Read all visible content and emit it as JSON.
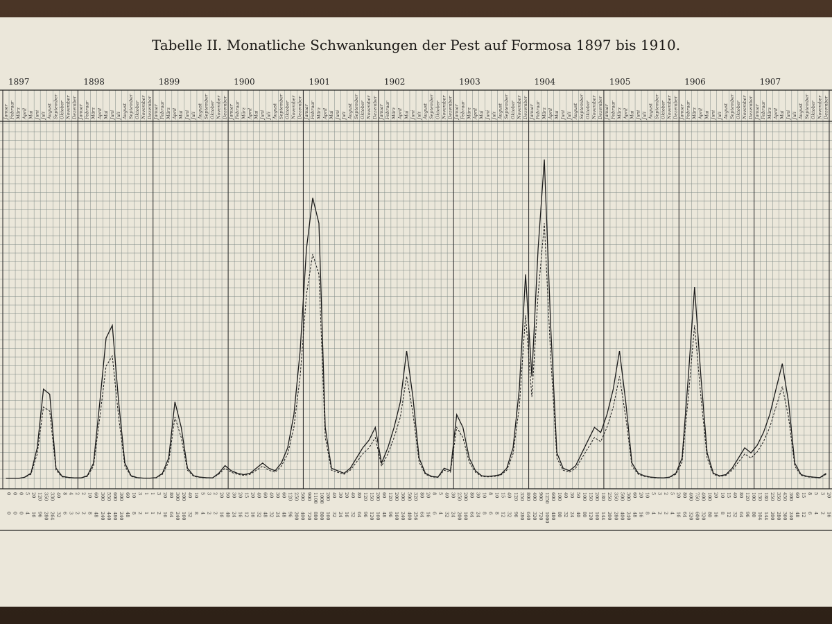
{
  "chart_data": {
    "type": "line",
    "title": "Tabelle II. Monatliche Schwankungen der Pest auf Formosa 1897 bis 1910.",
    "years": [
      "1897",
      "1898",
      "1899",
      "1900",
      "1901",
      "1902",
      "1903",
      "1904",
      "1905",
      "1906",
      "1907"
    ],
    "months": [
      "Januar",
      "Februar",
      "März",
      "April",
      "Mai",
      "Juni",
      "Juli",
      "August",
      "September",
      "Oktober",
      "November",
      "Dezember"
    ],
    "ylim": [
      0,
      1400
    ],
    "grid": true,
    "legend": "none",
    "series": [
      {
        "style": "solid",
        "color": "#1a1a1a",
        "values": [
          0,
          0,
          0,
          5,
          20,
          120,
          350,
          330,
          40,
          8,
          4,
          2,
          2,
          10,
          60,
          300,
          550,
          600,
          300,
          60,
          10,
          3,
          1,
          1,
          3,
          20,
          80,
          300,
          200,
          40,
          10,
          5,
          3,
          2,
          20,
          50,
          30,
          20,
          15,
          20,
          40,
          60,
          40,
          30,
          60,
          120,
          250,
          500,
          900,
          1100,
          1000,
          200,
          40,
          30,
          20,
          40,
          80,
          120,
          150,
          200,
          60,
          120,
          200,
          300,
          500,
          320,
          80,
          20,
          8,
          5,
          40,
          30,
          250,
          200,
          80,
          30,
          10,
          8,
          10,
          15,
          40,
          120,
          350,
          800,
          400,
          900,
          1250,
          600,
          100,
          40,
          30,
          50,
          100,
          150,
          200,
          180,
          250,
          350,
          500,
          300,
          60,
          20,
          10,
          5,
          3,
          2,
          5,
          20,
          80,
          400,
          750,
          400,
          100,
          20,
          10,
          15,
          40,
          80,
          120,
          100,
          130,
          180,
          250,
          350,
          450,
          300,
          60,
          15,
          8,
          5,
          3,
          20
        ]
      },
      {
        "style": "dashed",
        "color": "#1a1a1a",
        "values": [
          0,
          0,
          0,
          4,
          16,
          96,
          280,
          264,
          32,
          6,
          3,
          2,
          2,
          8,
          48,
          240,
          440,
          480,
          240,
          48,
          8,
          2,
          1,
          1,
          2,
          16,
          64,
          240,
          160,
          32,
          8,
          4,
          2,
          2,
          16,
          40,
          24,
          16,
          12,
          16,
          32,
          48,
          32,
          24,
          48,
          96,
          200,
          400,
          720,
          880,
          800,
          160,
          32,
          24,
          16,
          32,
          64,
          96,
          120,
          160,
          48,
          96,
          160,
          240,
          400,
          256,
          64,
          16,
          6,
          4,
          32,
          24,
          200,
          160,
          64,
          24,
          8,
          6,
          8,
          12,
          32,
          96,
          280,
          640,
          320,
          720,
          1000,
          480,
          80,
          32,
          24,
          40,
          80,
          120,
          160,
          144,
          200,
          280,
          400,
          240,
          48,
          16,
          8,
          4,
          2,
          2,
          4,
          16,
          64,
          320,
          600,
          320,
          80,
          16,
          8,
          12,
          32,
          64,
          96,
          80,
          104,
          144,
          200,
          280,
          360,
          240,
          48,
          12,
          6,
          4,
          2,
          16
        ]
      }
    ]
  },
  "colors": {
    "paper": "#ebe7da",
    "grid": "#7f8a86",
    "ink": "#1a1a1a",
    "background": "#3b2a1d"
  }
}
